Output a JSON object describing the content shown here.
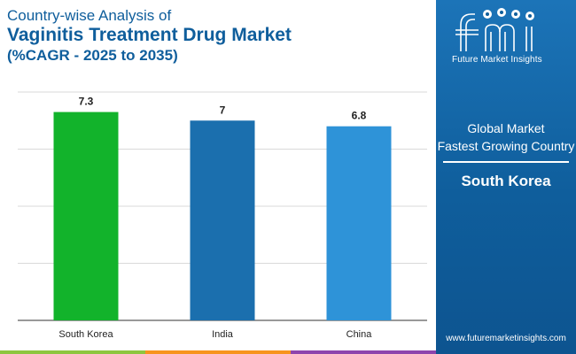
{
  "header": {
    "subtitle": "Country-wise Analysis of",
    "title": "Vaginitis Treatment Drug Market",
    "title_line2": "(%CAGR - 2025 to 2035)"
  },
  "chart_data": {
    "type": "bar",
    "categories": [
      "South Korea",
      "India",
      "China"
    ],
    "values": [
      7.3,
      7,
      6.8
    ],
    "value_labels": [
      "7.3",
      "7",
      "6.8"
    ],
    "bar_colors": [
      "#12b32b",
      "#1b6fae",
      "#2e93d8"
    ],
    "ylim": [
      0,
      8
    ],
    "grid": true,
    "legend": "none"
  },
  "side_panel": {
    "logo_text": "Future Market Insights",
    "label_line1": "Global Market",
    "label_line2": "Fastest Growing Country",
    "value": "South Korea",
    "website": "www.futuremarketinsights.com"
  },
  "colors": {
    "brand_blue": "#0f5e9c",
    "gridline": "#d9d9d9",
    "bottom_stripe": [
      "#8dc63f",
      "#f7941d",
      "#8e44ad"
    ]
  }
}
